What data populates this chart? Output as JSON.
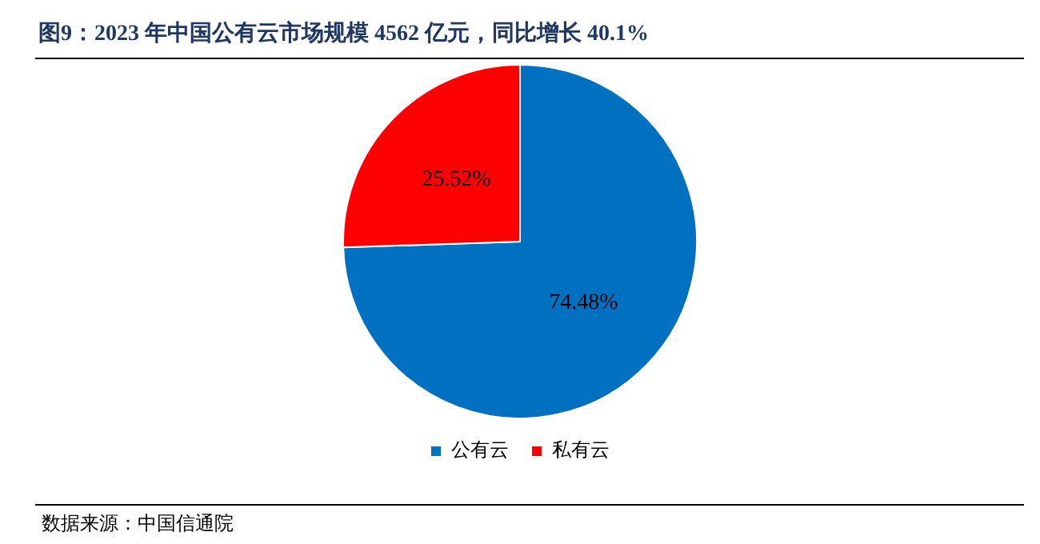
{
  "chart_data": {
    "type": "pie",
    "title": "图9：2023 年中国公有云市场规模 4562 亿元，同比增长 40.1%",
    "categories": [
      "公有云",
      "私有云"
    ],
    "values": [
      74.48,
      25.52
    ],
    "colors": [
      "#0070c0",
      "#ff0000"
    ],
    "value_labels": [
      "74.48%",
      "25.52%"
    ],
    "legend": "bottom",
    "annotations": [
      "数据来源：中国信通院"
    ]
  }
}
